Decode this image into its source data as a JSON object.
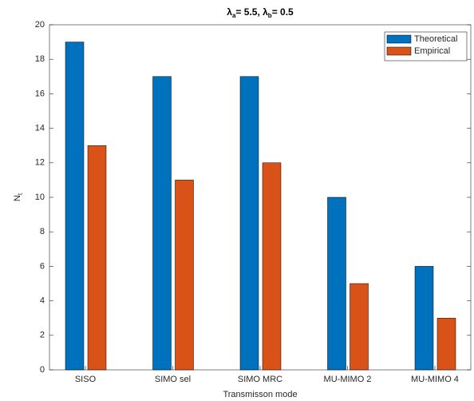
{
  "chart_data": {
    "type": "bar",
    "title": [
      {
        "text": "λ"
      },
      {
        "sub": "a"
      },
      {
        "text": "= 5.5,  λ"
      },
      {
        "sub": "b"
      },
      {
        "text": "= 0.5"
      }
    ],
    "x_label": "Transmisson mode",
    "y_label": [
      {
        "text": "N"
      },
      {
        "sub": "t"
      }
    ],
    "categories": [
      "SISO",
      "SIMO sel",
      "SIMO MRC",
      "MU-MIMO 2",
      "MU-MIMO 4"
    ],
    "series": [
      {
        "name": "Theoretical",
        "color": "#0072BD",
        "values": [
          19,
          17,
          17,
          10,
          6
        ]
      },
      {
        "name": "Empirical",
        "color": "#D95319",
        "values": [
          13,
          11,
          12,
          5,
          3
        ]
      }
    ],
    "ylim": [
      0,
      20
    ],
    "yticks": [
      0,
      2,
      4,
      6,
      8,
      10,
      12,
      14,
      16,
      18,
      20
    ],
    "legend": "top-right"
  }
}
